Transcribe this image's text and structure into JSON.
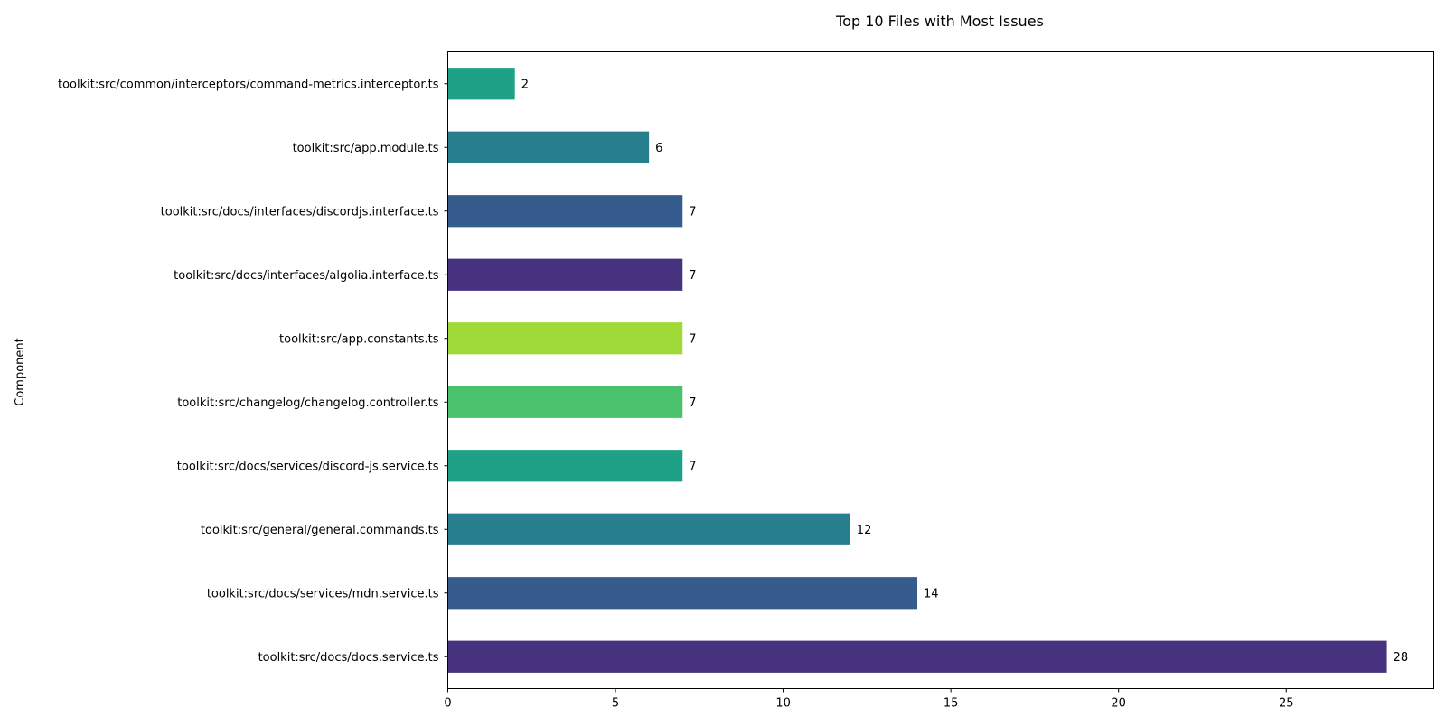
{
  "chart_data": {
    "type": "bar",
    "orientation": "horizontal",
    "title": "Top 10 Files with Most Issues",
    "xlabel": "",
    "ylabel": "Component",
    "xlim": [
      0,
      29.4
    ],
    "xticks": [
      0,
      5,
      10,
      15,
      20,
      25
    ],
    "grid": false,
    "categories": [
      "toolkit:src/docs/docs.service.ts",
      "toolkit:src/docs/services/mdn.service.ts",
      "toolkit:src/general/general.commands.ts",
      "toolkit:src/docs/services/discord-js.service.ts",
      "toolkit:src/changelog/changelog.controller.ts",
      "toolkit:src/app.constants.ts",
      "toolkit:src/docs/interfaces/algolia.interface.ts",
      "toolkit:src/docs/interfaces/discordjs.interface.ts",
      "toolkit:src/app.module.ts",
      "toolkit:src/common/interceptors/command-metrics.interceptor.ts"
    ],
    "values": [
      28,
      14,
      12,
      7,
      7,
      7,
      7,
      7,
      6,
      2
    ],
    "colors": [
      "#46327e",
      "#365c8d",
      "#277f8e",
      "#1fa187",
      "#4ac16d",
      "#a0da39",
      "#46327e",
      "#365c8d",
      "#277f8e",
      "#1fa187"
    ]
  }
}
